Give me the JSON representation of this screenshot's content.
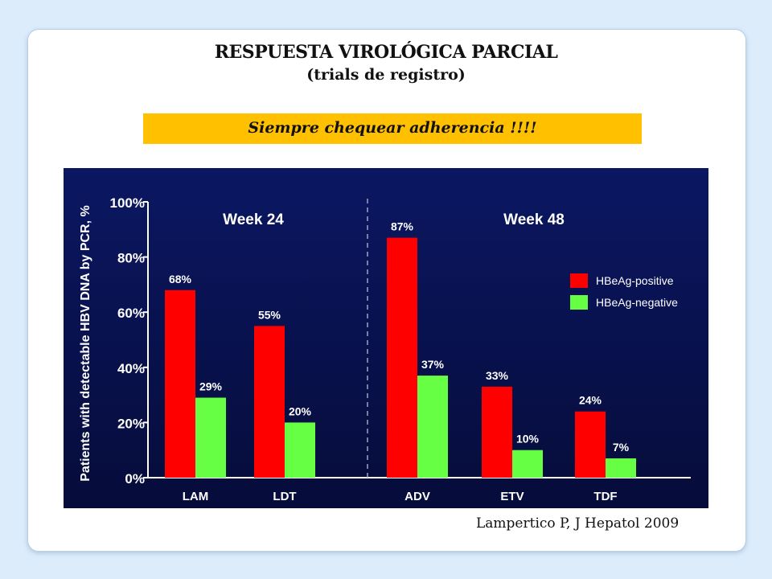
{
  "slide": {
    "title": "RESPUESTA VIROLÓGICA PARCIAL",
    "subtitle": "(trials de registro)",
    "banner": "Siempre chequear adherencia !!!!",
    "citation": "Lampertico P, J Hepatol 2009"
  },
  "colors": {
    "background": "#dcecfb",
    "banner": "#ffc000",
    "chart_bg": "#0a1450",
    "positive": "#ff0000",
    "negative": "#66ff44"
  },
  "chart_data": {
    "type": "bar",
    "ylabel": "Patients with detectable HBV DNA by PCR, %",
    "ylim": [
      0,
      100
    ],
    "yticks": [
      "0%",
      "20%",
      "40%",
      "60%",
      "80%",
      "100%"
    ],
    "groups": [
      {
        "label": "Week 24",
        "categories": [
          "LAM",
          "LDT"
        ]
      },
      {
        "label": "Week 48",
        "categories": [
          "ADV",
          "ETV",
          "TDF"
        ]
      }
    ],
    "categories": [
      "LAM",
      "LDT",
      "ADV",
      "ETV",
      "TDF"
    ],
    "series": [
      {
        "name": "HBeAg-positive",
        "color": "#ff0000",
        "values": [
          68,
          55,
          87,
          33,
          24
        ],
        "labels": [
          "68%",
          "55%",
          "87%",
          "33%",
          "24%"
        ]
      },
      {
        "name": "HBeAg-negative",
        "color": "#66ff44",
        "values": [
          29,
          20,
          37,
          10,
          7
        ],
        "labels": [
          "29%",
          "20%",
          "37%",
          "10%",
          "7%"
        ]
      }
    ],
    "legend_position": "right"
  }
}
